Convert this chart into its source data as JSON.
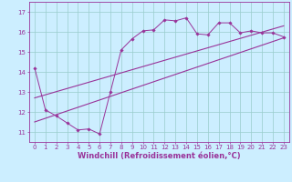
{
  "xlabel": "Windchill (Refroidissement éolien,°C)",
  "xlim": [
    -0.5,
    23.5
  ],
  "ylim": [
    10.5,
    17.5
  ],
  "xticks": [
    0,
    1,
    2,
    3,
    4,
    5,
    6,
    7,
    8,
    9,
    10,
    11,
    12,
    13,
    14,
    15,
    16,
    17,
    18,
    19,
    20,
    21,
    22,
    23
  ],
  "yticks": [
    11,
    12,
    13,
    14,
    15,
    16,
    17
  ],
  "bg_color": "#cceeff",
  "grid_color": "#99cccc",
  "line_color": "#993399",
  "line1_x": [
    0,
    1,
    2,
    3,
    4,
    5,
    6,
    7,
    8,
    9,
    10,
    11,
    12,
    13,
    14,
    15,
    16,
    17,
    18,
    19,
    20,
    21,
    22,
    23
  ],
  "line1_y": [
    14.2,
    12.1,
    11.8,
    11.45,
    11.1,
    11.15,
    10.9,
    13.0,
    15.1,
    15.65,
    16.05,
    16.1,
    16.6,
    16.55,
    16.7,
    15.9,
    15.85,
    16.45,
    16.45,
    15.95,
    16.05,
    15.95,
    15.95,
    15.75
  ],
  "line2_x": [
    0,
    23
  ],
  "line2_y": [
    11.5,
    15.7
  ],
  "line3_x": [
    0,
    23
  ],
  "line3_y": [
    12.7,
    16.3
  ],
  "tick_font_size": 5.0,
  "xlabel_font_size": 6.0
}
